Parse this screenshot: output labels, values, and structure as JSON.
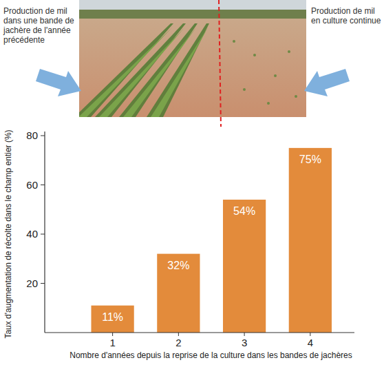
{
  "chart_data": {
    "type": "bar",
    "annotations": [
      "Production de mil dans une bande de jachère de l'année précédente",
      "Production de mil en culture continue"
    ],
    "x_label": "Nombre d'années depuis la reprise de la culture dans les bandes de jachères",
    "y_label": "Taux d'augmentation de récolte dans le champ entier (%)",
    "categories": [
      "1",
      "2",
      "3",
      "4"
    ],
    "values": [
      11,
      32,
      54,
      75
    ],
    "value_labels": [
      "11%",
      "32%",
      "54%",
      "75%"
    ],
    "data_labels": true,
    "color": "#e38b3b",
    "ylim": [
      0,
      80
    ],
    "yticks": [
      20,
      40,
      60,
      80
    ],
    "grid": false
  }
}
